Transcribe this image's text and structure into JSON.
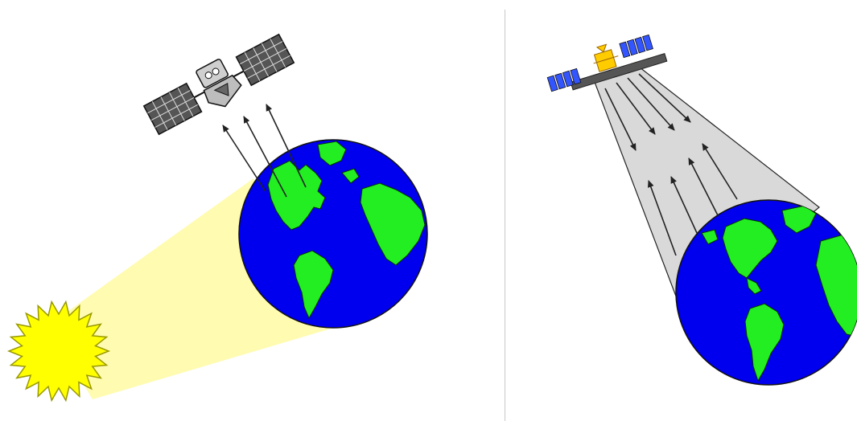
{
  "panels": [
    {
      "id": "passive-sensing",
      "elements": [
        "sun-icon",
        "sunlight-beam",
        "earth-globe",
        "reflected-radiation-arrows",
        "satellite-icon"
      ]
    },
    {
      "id": "active-sensing",
      "elements": [
        "satellite-icon",
        "radar-beam",
        "transmitted-pulse-arrows",
        "backscatter-arrows",
        "earth-globe"
      ]
    }
  ],
  "colors": {
    "background": "#ffffff",
    "ocean": "#0000ee",
    "land": "#22ee22",
    "sun": "#ffff00",
    "sun_outline": "#999900",
    "sunlight": "#fffbb0",
    "radar_beam": "#d9d9d9",
    "arrow": "#222222",
    "solar_panel_dark": "#555555",
    "solar_panel_blue": "#3355ff",
    "satellite_gold": "#ffcc00",
    "divider": "#c8c8c8"
  },
  "icons": [
    "sun-icon",
    "satellite-icon",
    "earth-icon"
  ]
}
